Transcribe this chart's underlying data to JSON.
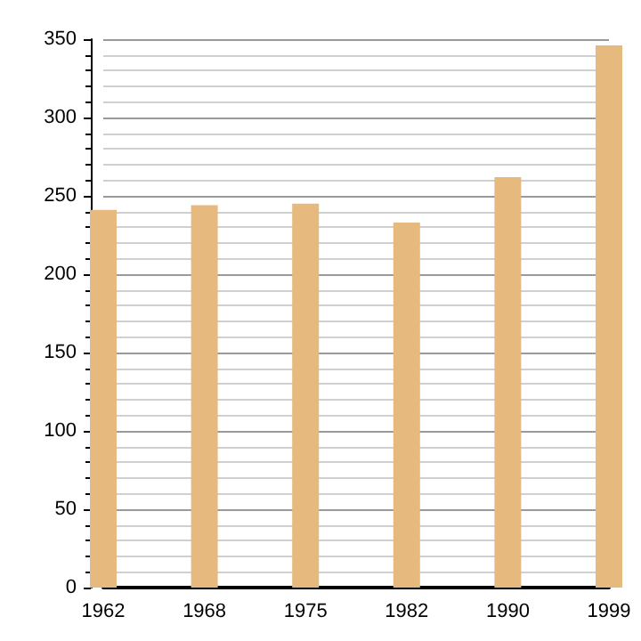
{
  "chart_data": {
    "type": "bar",
    "categories": [
      "1962",
      "1968",
      "1975",
      "1982",
      "1990",
      "1999"
    ],
    "values": [
      241,
      244,
      245,
      233,
      262,
      346
    ],
    "color": "#e6b97f",
    "ylim": [
      0,
      350
    ],
    "yticks": [
      0,
      50,
      100,
      150,
      200,
      250,
      300,
      350
    ],
    "grid": true
  }
}
